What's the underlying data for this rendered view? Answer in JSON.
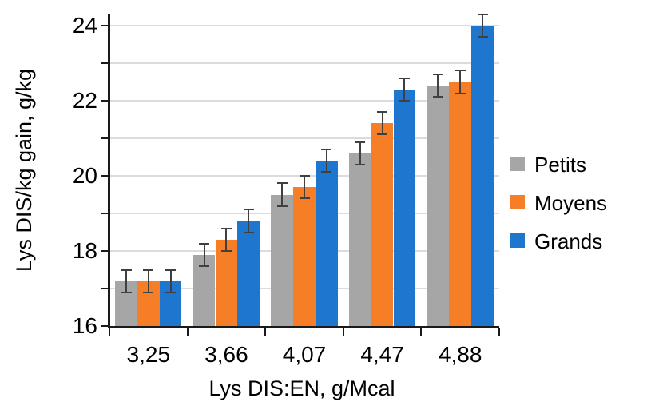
{
  "chart_data": {
    "type": "bar",
    "title": "",
    "xlabel": "Lys DIS:EN, g/Mcal",
    "ylabel": "Lys DIS/kg gain, g/kg",
    "categories": [
      "3,25",
      "3,66",
      "4,07",
      "4,47",
      "4,88"
    ],
    "series": [
      {
        "name": "Petits",
        "color": "#a6a6a6",
        "values": [
          17.2,
          17.9,
          19.5,
          20.6,
          22.4
        ],
        "errors": [
          0.3,
          0.3,
          0.3,
          0.3,
          0.3
        ]
      },
      {
        "name": "Moyens",
        "color": "#f57e27",
        "values": [
          17.2,
          18.3,
          19.7,
          21.4,
          22.5
        ],
        "errors": [
          0.3,
          0.3,
          0.3,
          0.3,
          0.3
        ]
      },
      {
        "name": "Grands",
        "color": "#1f76cf",
        "values": [
          17.2,
          18.8,
          20.4,
          22.3,
          24.0
        ],
        "errors": [
          0.3,
          0.3,
          0.3,
          0.3,
          0.3
        ]
      }
    ],
    "y_axis": {
      "min": 16,
      "max": 24.3,
      "tick_interval_minor": 1,
      "tick_labels": [
        "16",
        "18",
        "20",
        "22",
        "24"
      ],
      "tick_label_values": [
        16,
        18,
        20,
        22,
        24
      ]
    },
    "legend": {
      "position": "right",
      "items": [
        "Petits",
        "Moyens",
        "Grands"
      ]
    },
    "grid": true,
    "colors": {
      "gridline": "#dcdcdc",
      "axis": "#1a1a1a",
      "error_bar": "#404040",
      "background": "#ffffff",
      "text": "#000000"
    }
  }
}
